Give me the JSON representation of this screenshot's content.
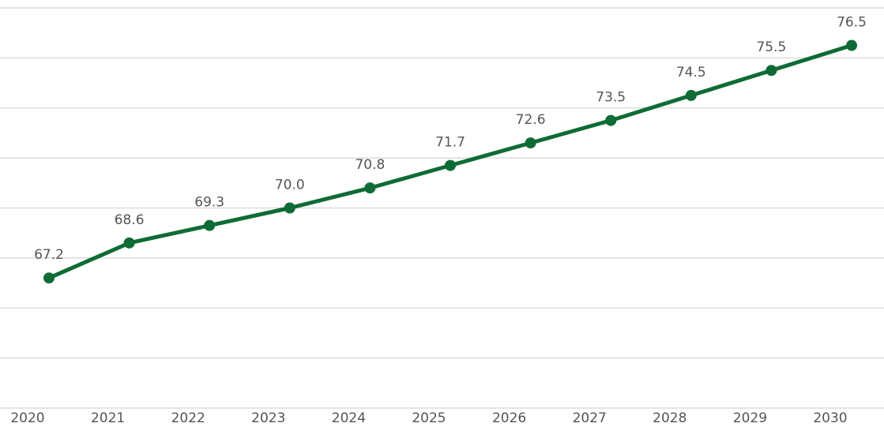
{
  "chart_data": {
    "type": "line",
    "categories": [
      "2020",
      "2021",
      "2022",
      "2023",
      "2024",
      "2025",
      "2026",
      "2027",
      "2028",
      "2029",
      "2030"
    ],
    "values": [
      67.2,
      68.6,
      69.3,
      70.0,
      70.8,
      71.7,
      72.6,
      73.5,
      74.5,
      75.5,
      76.5
    ],
    "value_labels": [
      "67.2",
      "68.6",
      "69.3",
      "70.0",
      "70.8",
      "71.7",
      "72.6",
      "73.5",
      "74.5",
      "75.5",
      "76.5"
    ],
    "color": "#0f6b35",
    "ylim": [
      62,
      78
    ],
    "yticks": [
      62,
      64,
      66,
      68,
      70,
      72,
      74,
      76,
      78
    ],
    "grid": true
  }
}
